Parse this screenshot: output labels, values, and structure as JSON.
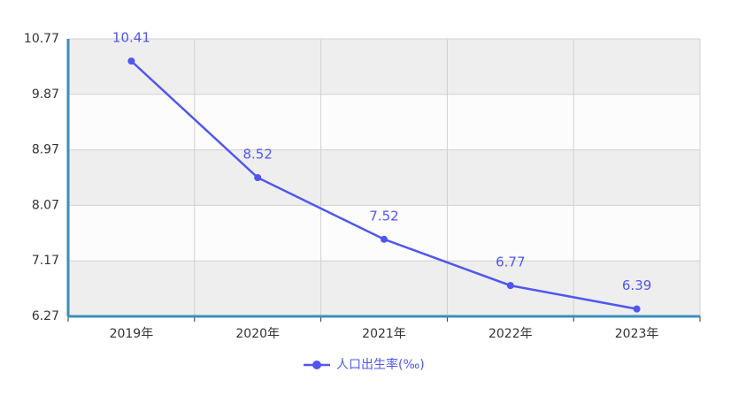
{
  "chart_data": {
    "type": "line",
    "categories": [
      "2019年",
      "2020年",
      "2021年",
      "2022年",
      "2023年"
    ],
    "series": [
      {
        "name": "人口出生率(‰)",
        "color": "#4f57f0",
        "values": [
          10.41,
          8.52,
          7.52,
          6.77,
          6.39
        ]
      }
    ],
    "ylim": [
      6.27,
      10.77
    ],
    "yticks": [
      6.27,
      7.17,
      8.07,
      8.97,
      9.87,
      10.77
    ],
    "grid": true,
    "legend": "bottom",
    "data_labels": true
  }
}
